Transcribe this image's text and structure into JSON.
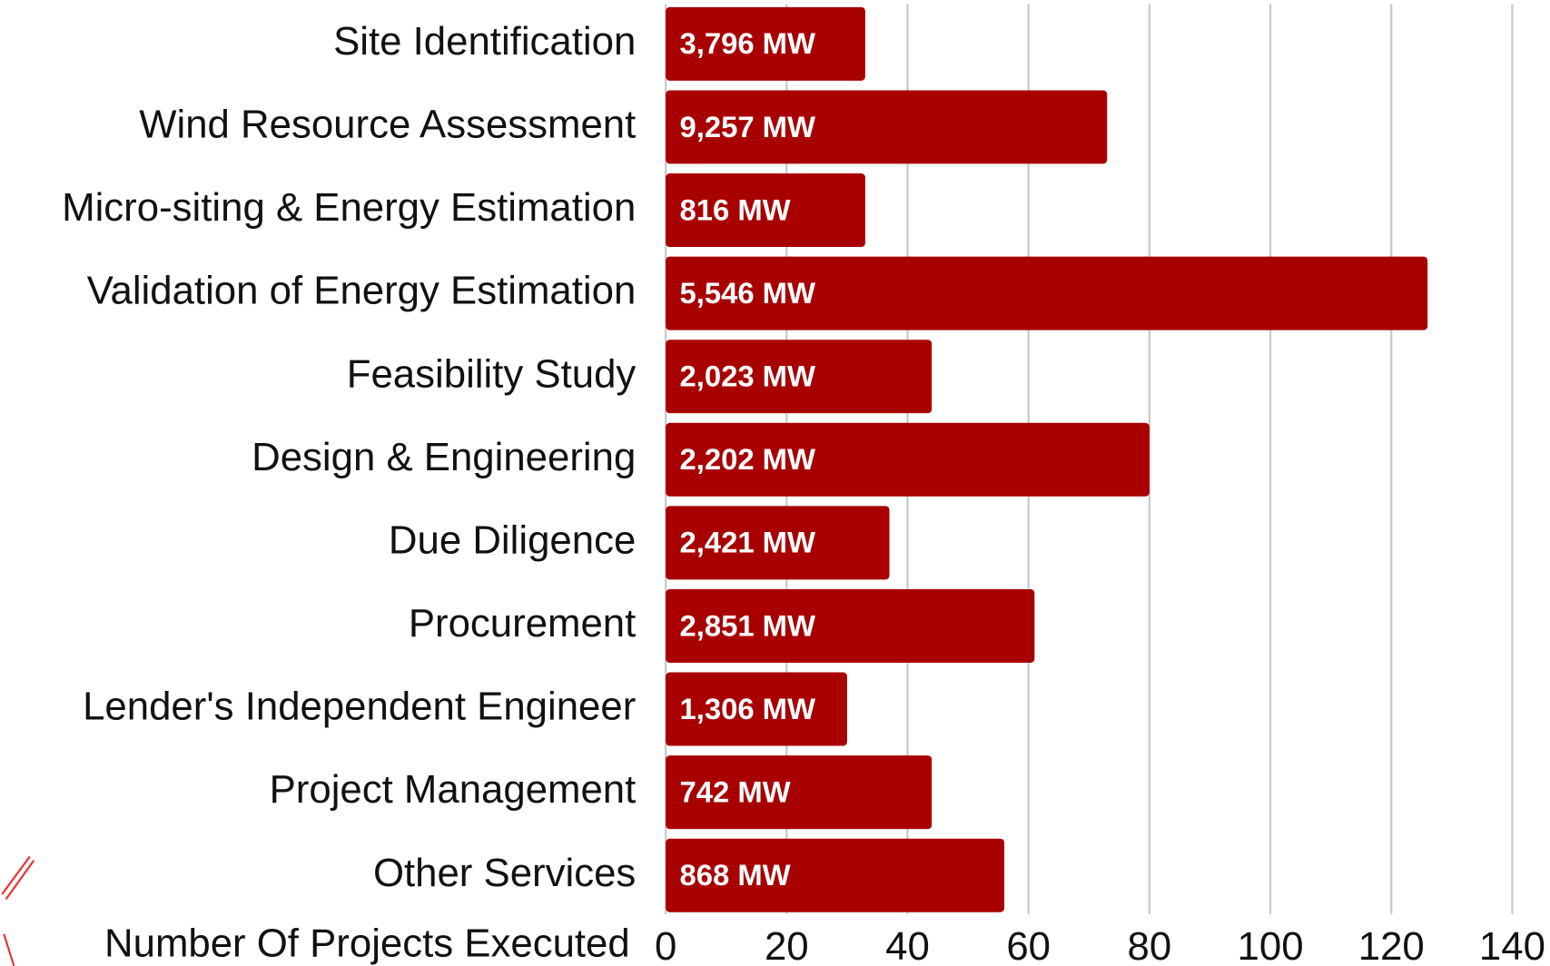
{
  "chart_data": {
    "type": "bar",
    "orientation": "horizontal",
    "x_label": "Number Of Projects Executed",
    "categories": [
      "Site Identification",
      "Wind Resource Assessment",
      "Micro-siting & Energy Estimation",
      "Validation of Energy Estimation",
      "Feasibility Study",
      "Design & Engineering",
      "Due Diligence",
      "Procurement",
      "Lender's Independent Engineer",
      "Project Management",
      "Other Services"
    ],
    "values": [
      33,
      73,
      33,
      126,
      44,
      80,
      37,
      61,
      30,
      44,
      56
    ],
    "bar_labels": [
      "3,796 MW",
      "9,257 MW",
      "816 MW",
      "5,546 MW",
      "2,023 MW",
      "2,202 MW",
      "2,421 MW",
      "2,851 MW",
      "1,306 MW",
      "742 MW",
      "868 MW"
    ],
    "color": "#a80000",
    "xlim": [
      0,
      140
    ],
    "xticks": [
      0,
      20,
      40,
      60,
      80,
      100,
      120,
      140
    ],
    "grid": true
  }
}
